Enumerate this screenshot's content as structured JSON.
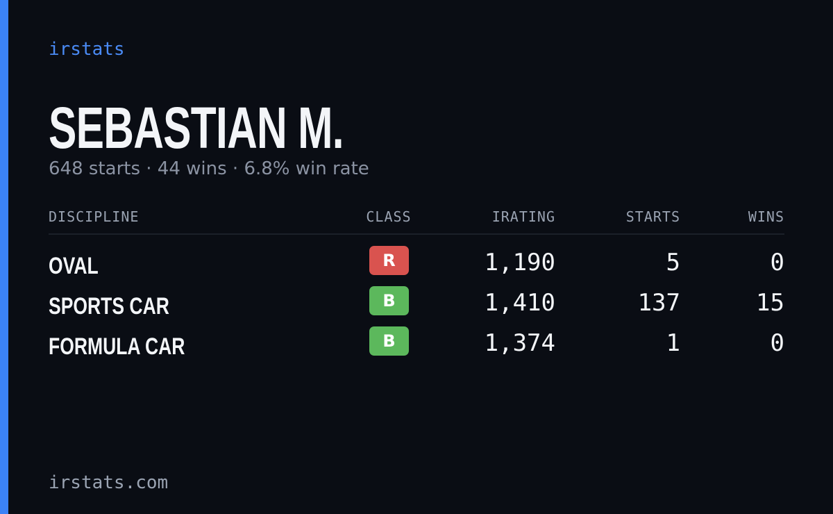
{
  "brand": "irstats",
  "name": "SEBASTIAN M.",
  "summary": "648 starts · 44 wins · 6.8% win rate",
  "table": {
    "headers": [
      "DISCIPLINE",
      "CLASS",
      "IRATING",
      "STARTS",
      "WINS"
    ],
    "rows": [
      {
        "discipline": "OVAL",
        "class": "R",
        "class_color": "#d9534f",
        "irating": "1,190",
        "starts": "5",
        "wins": "0"
      },
      {
        "discipline": "SPORTS CAR",
        "class": "B",
        "class_color": "#5cb85c",
        "irating": "1,410",
        "starts": "137",
        "wins": "15"
      },
      {
        "discipline": "FORMULA CAR",
        "class": "B",
        "class_color": "#5cb85c",
        "irating": "1,374",
        "starts": "1",
        "wins": "0"
      }
    ]
  },
  "footer": "irstats.com"
}
